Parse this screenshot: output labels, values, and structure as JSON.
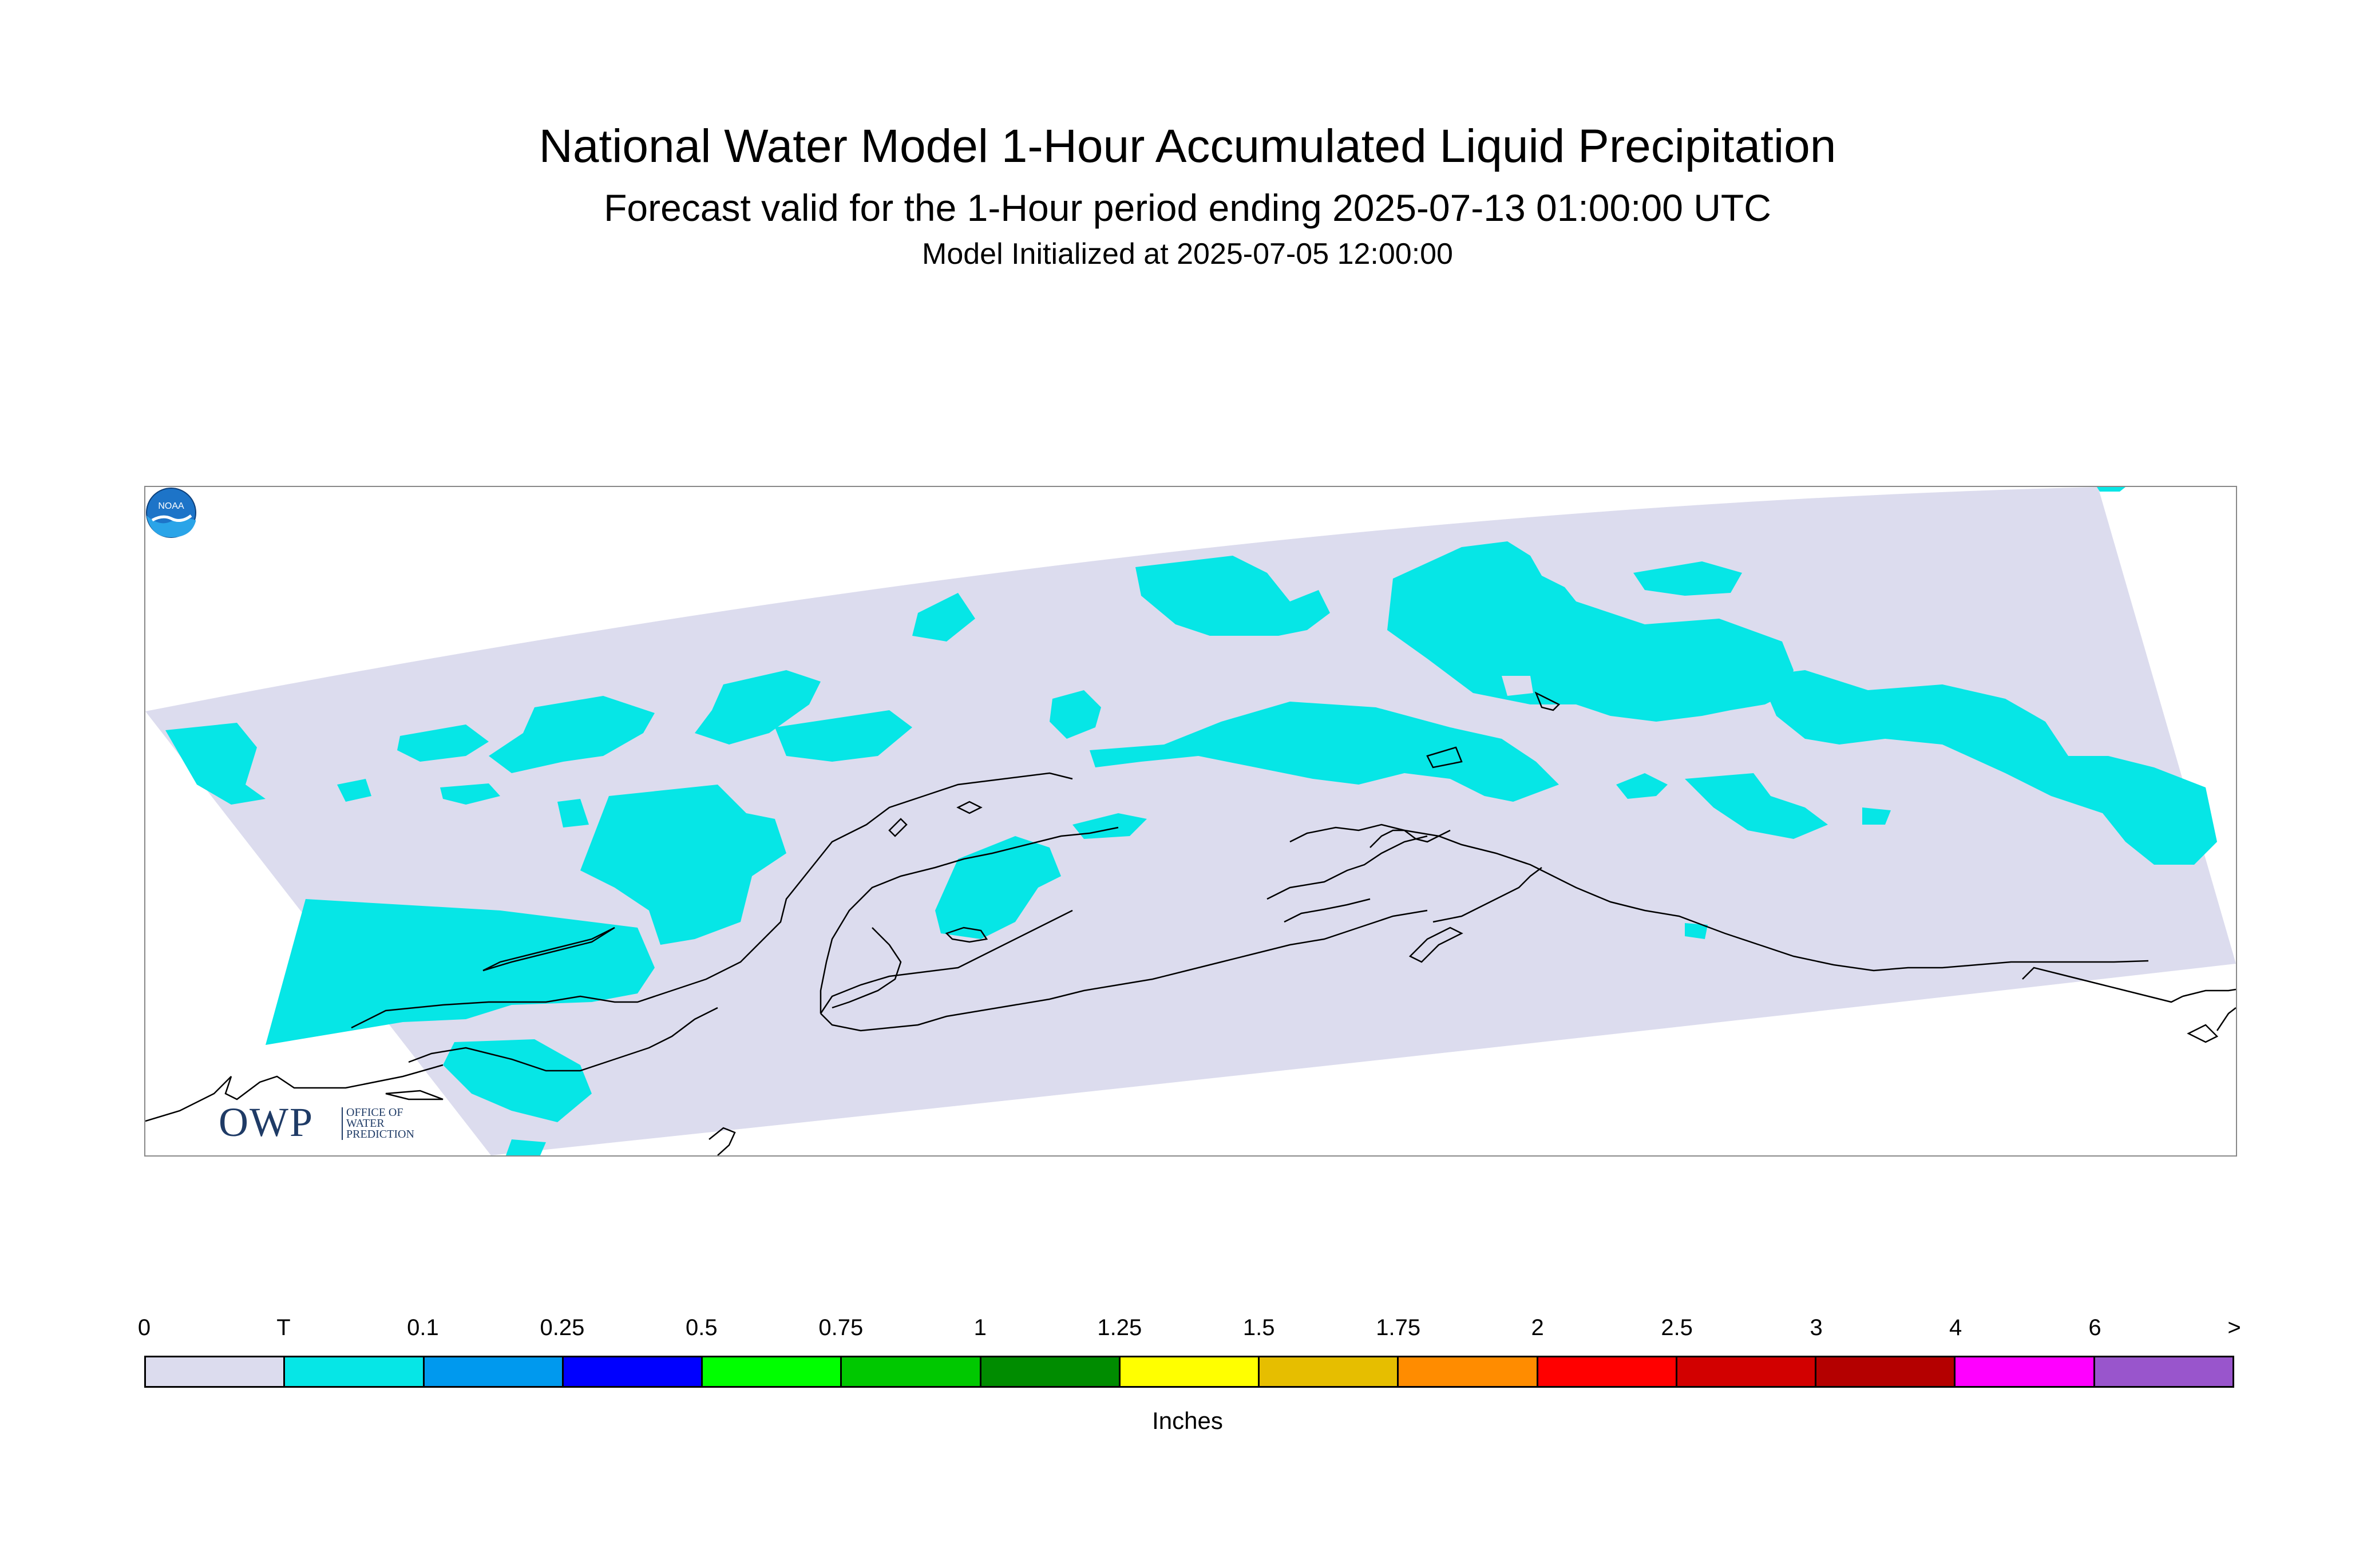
{
  "title": "National Water Model 1-Hour Accumulated Liquid Precipitation",
  "subtitle": "Forecast valid for the 1-Hour period ending 2025-07-13 01:00:00 UTC",
  "init_line": "Model Initialized at 2025-07-05 12:00:00",
  "units": "Inches",
  "logos": {
    "owp": {
      "letters": "OWP",
      "line1": "OFFICE OF",
      "line2": "WATER",
      "line3": "PREDICTION"
    },
    "noaa": {
      "letters": "NOAA"
    }
  },
  "colors": {
    "domain_fill": "#dcdcee",
    "trace": "#06e6e6",
    "coastline": "#000000"
  },
  "legend": {
    "labels": [
      "0",
      "T",
      "0.1",
      "0.25",
      "0.5",
      "0.75",
      "1",
      "1.25",
      "1.5",
      "1.75",
      "2",
      "2.5",
      "3",
      "4",
      "6",
      ">"
    ],
    "colors": [
      "#dcdcee",
      "#06e6e6",
      "#0099ee",
      "#0000ff",
      "#00ff00",
      "#00c800",
      "#008c00",
      "#ffff00",
      "#e6be00",
      "#ff8c00",
      "#ff0000",
      "#d20000",
      "#b40000",
      "#ff00ff",
      "#9955cc"
    ]
  }
}
